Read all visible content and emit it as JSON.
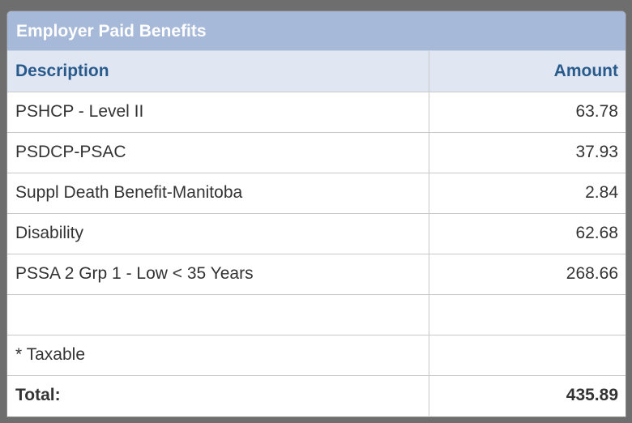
{
  "panel": {
    "title": "Employer Paid Benefits"
  },
  "table": {
    "headers": {
      "description": "Description",
      "amount": "Amount"
    },
    "rows": [
      {
        "description": "PSHCP - Level II",
        "amount": "63.78"
      },
      {
        "description": "PSDCP-PSAC",
        "amount": "37.93"
      },
      {
        "description": "Suppl Death Benefit-Manitoba",
        "amount": "2.84"
      },
      {
        "description": "Disability",
        "amount": "62.68"
      },
      {
        "description": "PSSA 2 Grp 1 - Low < 35 Years",
        "amount": "268.66"
      },
      {
        "description": "",
        "amount": ""
      },
      {
        "description": "* Taxable",
        "amount": ""
      }
    ],
    "total": {
      "label": "Total:",
      "amount": "435.89"
    }
  },
  "colors": {
    "header_bg": "#a7b9d8",
    "column_header_bg": "#e1e7f2",
    "column_header_text": "#285a8c",
    "background": "#6e6e6e"
  }
}
